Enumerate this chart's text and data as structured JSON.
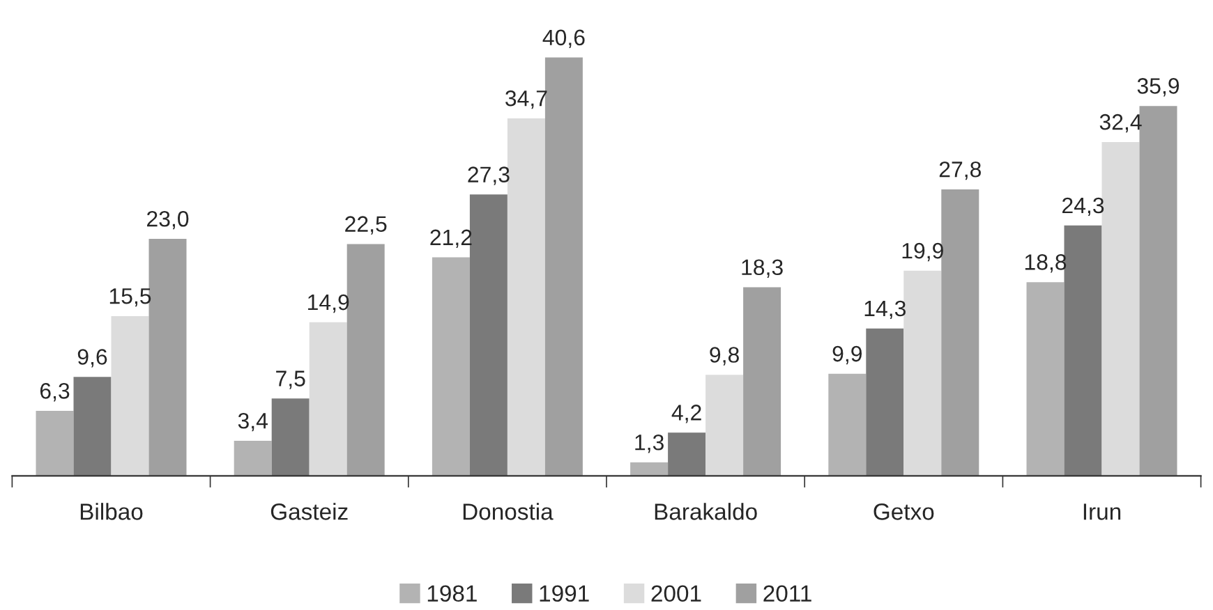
{
  "chart_data": {
    "type": "bar",
    "categories": [
      "Bilbao",
      "Gasteiz",
      "Donostia",
      "Barakaldo",
      "Getxo",
      "Irun"
    ],
    "series": [
      {
        "name": "1981",
        "color": "#b3b3b3",
        "values": [
          6.3,
          3.4,
          21.2,
          1.3,
          9.9,
          18.8
        ],
        "value_labels": [
          "6,3",
          "3,4",
          "21,2",
          "1,3",
          "9,9",
          "18,8"
        ]
      },
      {
        "name": "1991",
        "color": "#7a7a7a",
        "values": [
          9.6,
          7.5,
          27.3,
          4.2,
          14.3,
          24.3
        ],
        "value_labels": [
          "9,6",
          "7,5",
          "27,3",
          "4,2",
          "14,3",
          "24,3"
        ]
      },
      {
        "name": "2001",
        "color": "#dcdcdc",
        "values": [
          15.5,
          14.9,
          34.7,
          9.8,
          19.9,
          32.4
        ],
        "value_labels": [
          "15,5",
          "14,9",
          "34,7",
          "9,8",
          "19,9",
          "32,4"
        ]
      },
      {
        "name": "2011",
        "color": "#a0a0a0",
        "values": [
          23.0,
          22.5,
          40.6,
          18.3,
          27.8,
          35.9
        ],
        "value_labels": [
          "23,0",
          "22,5",
          "40,6",
          "18,3",
          "27,8",
          "35,9"
        ]
      }
    ],
    "legend": "bottom",
    "grid": false
  }
}
